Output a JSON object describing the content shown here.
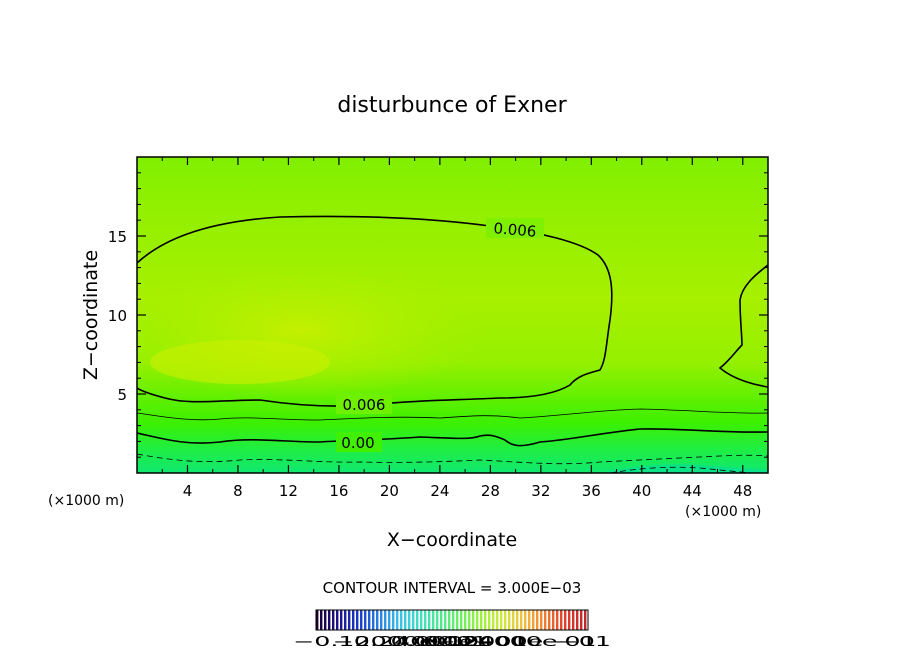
{
  "chart_data": {
    "type": "heatmap",
    "title": "disturbunce of Exner",
    "xlabel": "X−coordinate",
    "ylabel": "Z−coordinate",
    "x_unit_left": "(×1000 m)",
    "x_unit_right": "(×1000 m)",
    "xlim": [
      0,
      50
    ],
    "ylim": [
      0,
      20
    ],
    "x_ticks": [
      4,
      8,
      12,
      16,
      20,
      24,
      28,
      32,
      36,
      40,
      44,
      48
    ],
    "y_ticks": [
      5,
      10,
      15
    ],
    "contour_labels": [
      {
        "text": "0.006",
        "x": 30.5,
        "y": 15.2
      },
      {
        "text": "0.006",
        "x": 17.5,
        "y": 4.3
      },
      {
        "text": "0.00",
        "x": 17.5,
        "y": 1.9
      }
    ],
    "contour_interval_text": "CONTOUR INTERVAL = 3.000E−03",
    "colorbar": {
      "label_text": "−0.24000e−01",
      "label_text_2": "−0.12000e−01",
      "label_text_3": "0.0000",
      "label_text_4": "0.12000e−01",
      "label_text_5": "0.24000e−01",
      "colors": [
        "#1a0030",
        "#20108a",
        "#1838c8",
        "#2a7fe0",
        "#3cc0e8",
        "#40e0c0",
        "#50e890",
        "#70f060",
        "#a0f040",
        "#d0e840",
        "#f0c040",
        "#f08030",
        "#e04030",
        "#c02828"
      ]
    }
  }
}
